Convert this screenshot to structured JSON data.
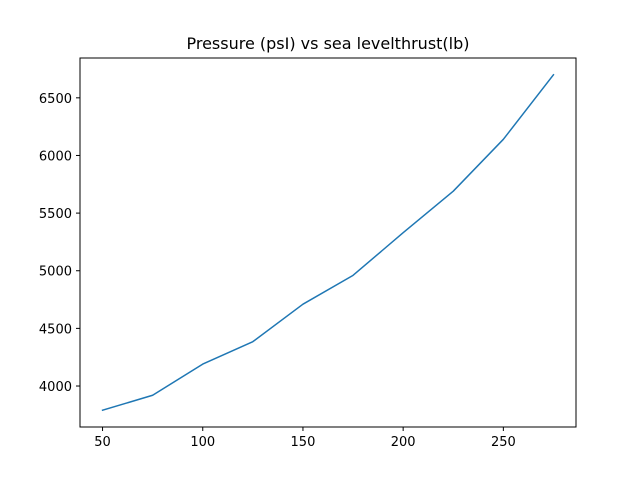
{
  "chart_data": {
    "type": "line",
    "title": "Pressure  (psI) vs sea levelthrust(lb)",
    "xlabel": "",
    "ylabel": "",
    "x": [
      50,
      75,
      100,
      125,
      150,
      175,
      200,
      225,
      250,
      275
    ],
    "series": [
      {
        "values": [
          3790,
          3920,
          4190,
          4385,
          4710,
          4960,
          5330,
          5690,
          6140,
          6700
        ],
        "color": "#1f77b4"
      }
    ],
    "xlim": [
      38.75,
      286.25
    ],
    "ylim": [
      3644.5,
      6845.5
    ],
    "xticks": [
      50,
      100,
      150,
      200,
      250
    ],
    "yticks": [
      4000,
      4500,
      5000,
      5500,
      6000,
      6500
    ],
    "grid": false,
    "legend": "none"
  }
}
